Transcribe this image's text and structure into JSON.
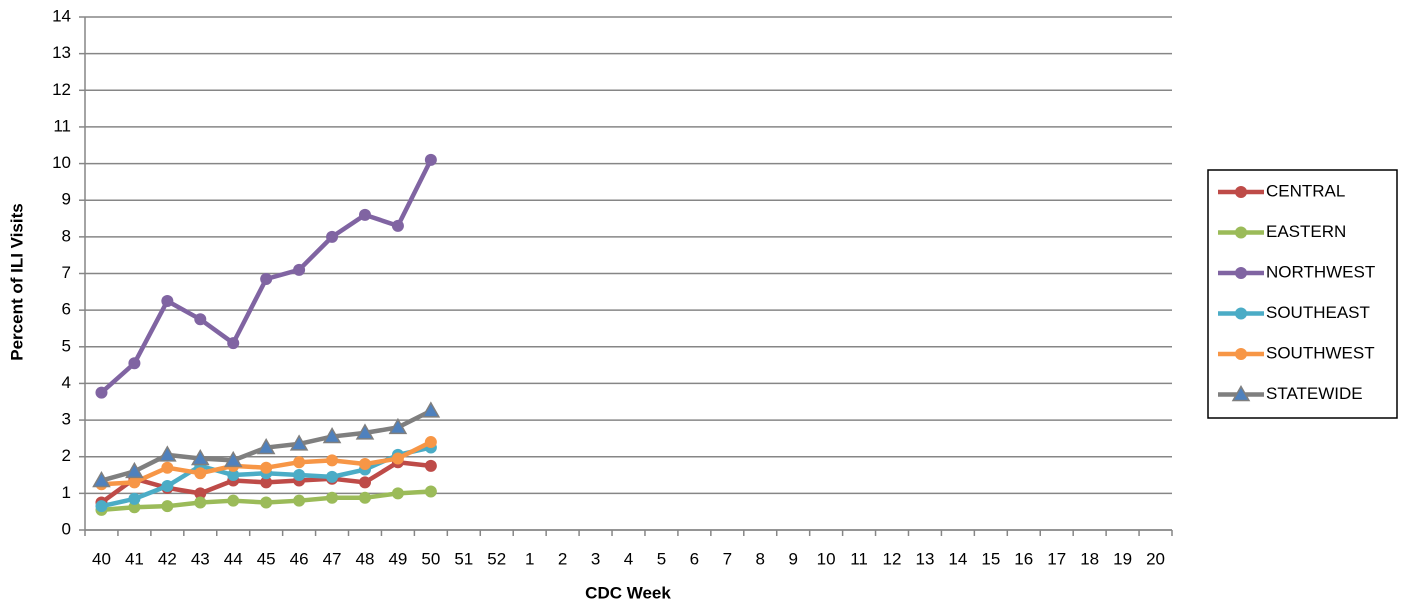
{
  "chart_data": {
    "type": "line",
    "x_label": "CDC Week",
    "y_label": "Percent of ILI Visits",
    "categories": [
      "40",
      "41",
      "42",
      "43",
      "44",
      "45",
      "46",
      "47",
      "48",
      "49",
      "50",
      "51",
      "52",
      "1",
      "2",
      "3",
      "4",
      "5",
      "6",
      "7",
      "8",
      "9",
      "10",
      "11",
      "12",
      "13",
      "14",
      "15",
      "16",
      "17",
      "18",
      "19",
      "20"
    ],
    "ylim": [
      0,
      14
    ],
    "yticks": [
      0,
      1,
      2,
      3,
      4,
      5,
      6,
      7,
      8,
      9,
      10,
      11,
      12,
      13,
      14
    ],
    "grid": true,
    "legend": "right",
    "series": [
      {
        "name": "CENTRAL",
        "color": "#be4b48",
        "marker": "circle",
        "values": [
          0.75,
          1.4,
          1.15,
          1.0,
          1.35,
          1.3,
          1.35,
          1.4,
          1.3,
          1.85,
          1.75,
          null,
          null,
          null,
          null,
          null,
          null,
          null,
          null,
          null,
          null,
          null,
          null,
          null,
          null,
          null,
          null,
          null,
          null,
          null,
          null,
          null,
          null
        ]
      },
      {
        "name": "EASTERN",
        "color": "#9bbb59",
        "marker": "circle",
        "values": [
          0.55,
          0.62,
          0.65,
          0.75,
          0.8,
          0.75,
          0.8,
          0.88,
          0.88,
          1.0,
          1.05,
          null,
          null,
          null,
          null,
          null,
          null,
          null,
          null,
          null,
          null,
          null,
          null,
          null,
          null,
          null,
          null,
          null,
          null,
          null,
          null,
          null,
          null
        ]
      },
      {
        "name": "NORTHWEST",
        "color": "#8064a2",
        "marker": "circle",
        "values": [
          3.75,
          4.55,
          6.25,
          5.75,
          5.1,
          6.85,
          7.1,
          8.0,
          8.6,
          8.3,
          10.1,
          null,
          null,
          null,
          null,
          null,
          null,
          null,
          null,
          null,
          null,
          null,
          null,
          null,
          null,
          null,
          null,
          null,
          null,
          null,
          null,
          null,
          null
        ]
      },
      {
        "name": "SOUTHEAST",
        "color": "#4bacc6",
        "marker": "circle",
        "values": [
          0.65,
          0.85,
          1.2,
          1.75,
          1.5,
          1.55,
          1.5,
          1.45,
          1.65,
          2.05,
          2.25,
          null,
          null,
          null,
          null,
          null,
          null,
          null,
          null,
          null,
          null,
          null,
          null,
          null,
          null,
          null,
          null,
          null,
          null,
          null,
          null,
          null,
          null
        ]
      },
      {
        "name": "SOUTHWEST",
        "color": "#f79646",
        "marker": "circle",
        "values": [
          1.25,
          1.3,
          1.7,
          1.55,
          1.75,
          1.7,
          1.85,
          1.9,
          1.8,
          1.95,
          2.4,
          null,
          null,
          null,
          null,
          null,
          null,
          null,
          null,
          null,
          null,
          null,
          null,
          null,
          null,
          null,
          null,
          null,
          null,
          null,
          null,
          null,
          null
        ]
      },
      {
        "name": "STATEWIDE",
        "color": "#7f7f7f",
        "marker": "triangle",
        "marker_color": "#4f81bd",
        "values": [
          1.35,
          1.6,
          2.05,
          1.95,
          1.9,
          2.25,
          2.35,
          2.55,
          2.65,
          2.8,
          3.25,
          null,
          null,
          null,
          null,
          null,
          null,
          null,
          null,
          null,
          null,
          null,
          null,
          null,
          null,
          null,
          null,
          null,
          null,
          null,
          null,
          null,
          null
        ]
      }
    ]
  }
}
